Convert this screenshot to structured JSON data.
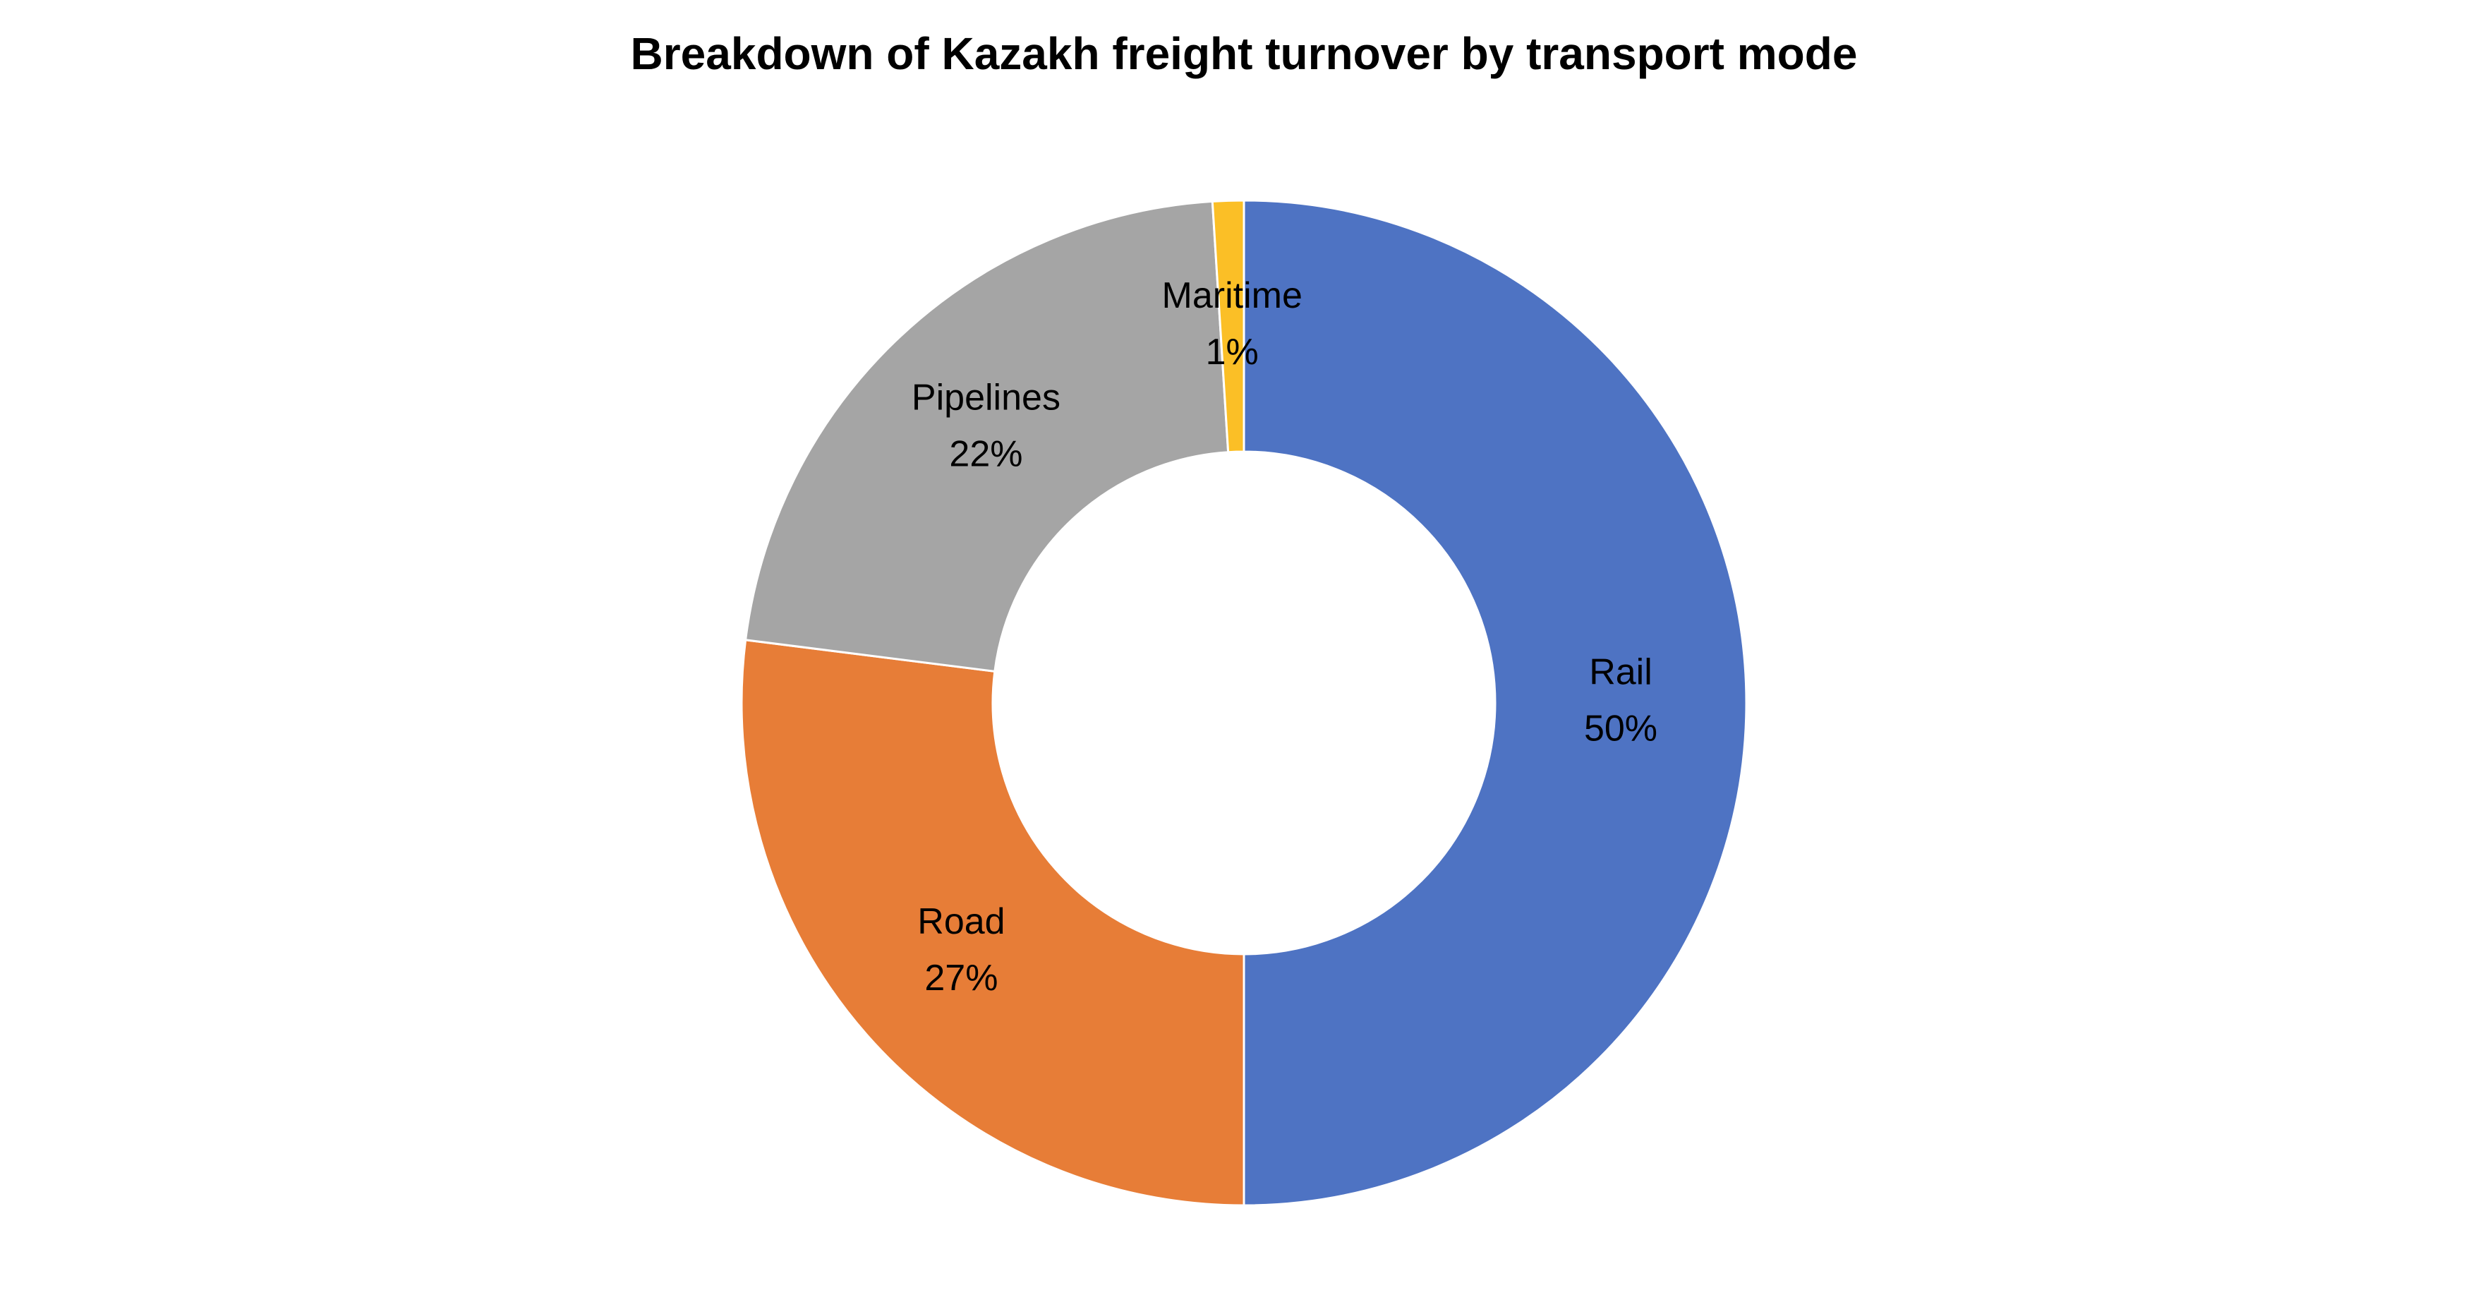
{
  "chart_data": {
    "type": "donut",
    "title": "Breakdown of Kazakh freight turnover by transport mode",
    "categories": [
      "Rail",
      "Road",
      "Pipelines",
      "Maritime"
    ],
    "values": [
      50,
      27,
      22,
      1
    ],
    "value_labels": [
      "50%",
      "27%",
      "22%",
      "1%"
    ],
    "colors": [
      "#4e73c3",
      "#e77d37",
      "#a5a5a5",
      "#fbbf26"
    ]
  }
}
